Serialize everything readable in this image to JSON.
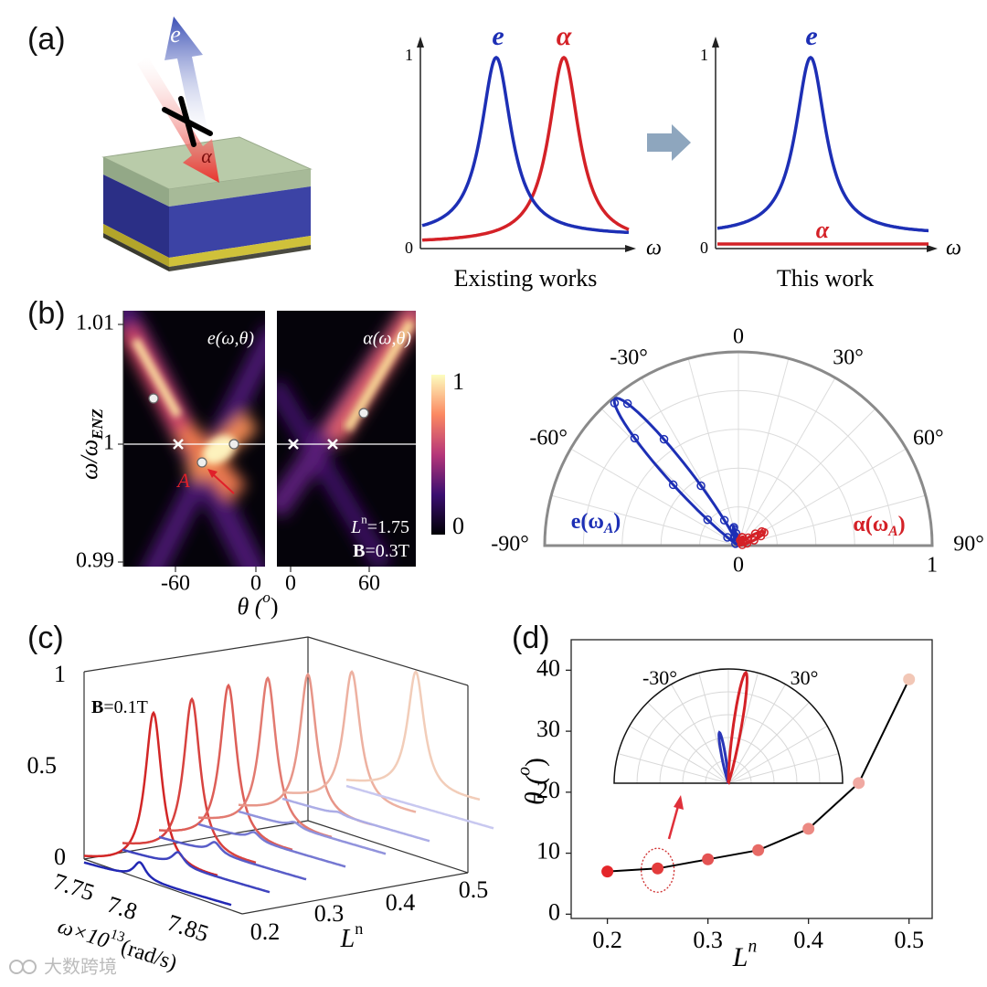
{
  "panel_labels": [
    "(a)",
    "(b)",
    "(c)",
    "(d)"
  ],
  "panel_a": {
    "arrow_e": "e",
    "arrow_alpha": "α",
    "plot1": {
      "ytick_top": 1,
      "ytick_bottom": 0,
      "x_label": "ω",
      "peak_e": "e",
      "peak_alpha": "α",
      "caption": "Existing works"
    },
    "plot2": {
      "ytick_top": 1,
      "ytick_bottom": 0,
      "x_label": "ω",
      "peak_e": "e",
      "line_alpha": "α",
      "caption": "This work"
    }
  },
  "panel_b": {
    "y_label": [
      "ω/ω",
      "ENZ"
    ],
    "yticks": [
      1.01,
      1,
      0.99
    ],
    "xticks_left": [
      -60,
      0
    ],
    "xticks_right": [
      0,
      60
    ],
    "x_label": [
      "θ (",
      "o",
      ")"
    ],
    "map_e_label": "e(ω,θ)",
    "map_alpha_label": "α(ω,θ)",
    "point_label": "A",
    "param_L": [
      "L",
      "n",
      "=1.75"
    ],
    "param_B": [
      "B",
      "=0.3T"
    ],
    "colorbar_ticks": [
      1,
      0
    ],
    "polar": {
      "angle_labels": [
        "-90°",
        "-60°",
        "-30°",
        "0",
        "30°",
        "60°",
        "90°"
      ],
      "radial_labels": [
        0,
        1
      ],
      "e_label": [
        "e(ω",
        "A",
        ")"
      ],
      "alpha_label": [
        "α(ω",
        "A",
        ")"
      ]
    }
  },
  "panel_c": {
    "zticks": [
      1,
      0.5,
      0
    ],
    "field": [
      "B",
      "=0.1T"
    ],
    "omega_ticks": [
      7.75,
      7.8,
      7.85
    ],
    "omega_label": [
      "ω×10",
      "13",
      "(rad/s)"
    ],
    "L_ticks": [
      0.2,
      0.3,
      0.4,
      0.5
    ],
    "L_label": [
      "L",
      "n"
    ]
  },
  "panel_d_inset": {
    "angle_labels": [
      "-30°",
      "30°"
    ]
  },
  "watermark": "大数跨境",
  "chart_data": {
    "type": "line",
    "x": [
      0.2,
      0.25,
      0.3,
      0.35,
      0.4,
      0.45,
      0.5
    ],
    "series": [
      {
        "values": [
          7,
          7.5,
          9,
          10.5,
          14,
          21.5,
          38.5
        ],
        "color": "#000000",
        "point_colors": [
          "#e4262a",
          "#e33b3b",
          "#e45353",
          "#e76a66",
          "#ec8a83",
          "#f0a9a2",
          "#f2c7b6"
        ]
      }
    ],
    "x_label": [
      "L",
      "n"
    ],
    "y_label": [
      "θ (",
      "o",
      ")"
    ],
    "xlim": [
      0.164,
      0.523
    ],
    "ylim": [
      -0.7,
      45
    ],
    "xticks": [
      0.2,
      0.3,
      0.4,
      0.5
    ],
    "yticks": [
      0,
      10,
      20,
      30,
      40
    ]
  }
}
